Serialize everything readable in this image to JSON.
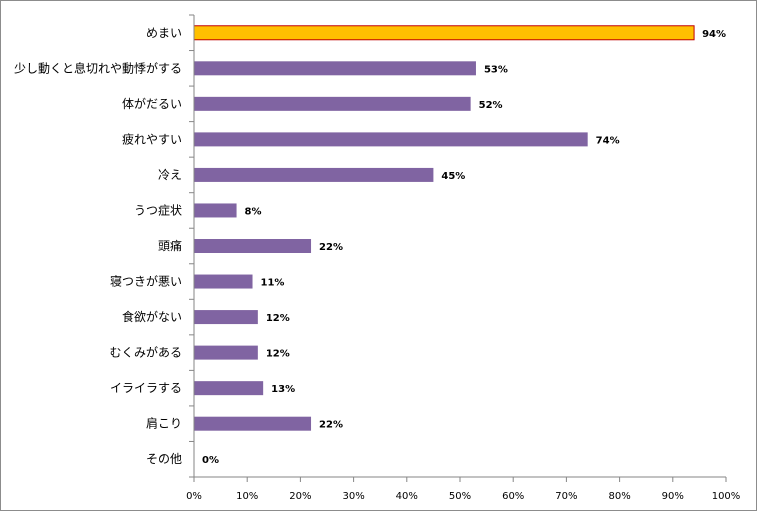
{
  "chart_data": {
    "type": "bar",
    "orientation": "horizontal",
    "categories": [
      "めまい",
      "少し動くと息切れや動悸がする",
      "体がだるい",
      "疲れやすい",
      "冷え",
      "うつ症状",
      "頭痛",
      "寝つきが悪い",
      "食欲がない",
      "むくみがある",
      "イライラする",
      "肩こり",
      "その他"
    ],
    "values": [
      94,
      53,
      52,
      74,
      45,
      8,
      22,
      11,
      12,
      12,
      13,
      22,
      0
    ],
    "value_labels": [
      "94%",
      "53%",
      "52%",
      "74%",
      "45%",
      "8%",
      "22%",
      "11%",
      "12%",
      "12%",
      "13%",
      "22%",
      "0%"
    ],
    "xlim": [
      0,
      100
    ],
    "x_ticks": [
      0,
      10,
      20,
      30,
      40,
      50,
      60,
      70,
      80,
      90,
      100
    ],
    "x_tick_labels": [
      "0%",
      "10%",
      "20%",
      "30%",
      "40%",
      "50%",
      "60%",
      "70%",
      "80%",
      "90%",
      "100%"
    ],
    "grid": false,
    "legend": "none",
    "colors": {
      "bar": "#8064a2",
      "highlight_bar": "#ffc000",
      "highlight_border": "#c00000",
      "axis": "#868686"
    },
    "highlight_index": 0
  }
}
